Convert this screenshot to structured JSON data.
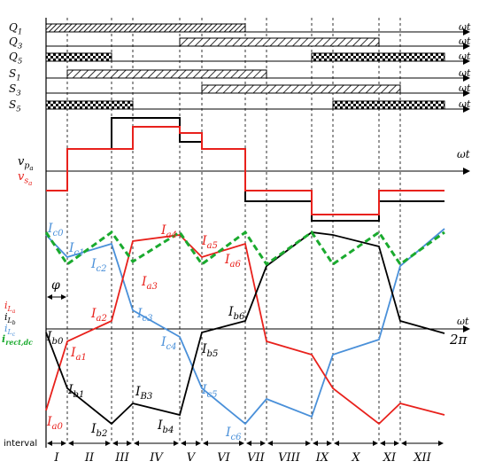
{
  "switches": [
    {
      "label_main": "Q",
      "label_sub": "1",
      "pattern": "hatch-dense"
    },
    {
      "label_main": "Q",
      "label_sub": "3",
      "pattern": "hatch"
    },
    {
      "label_main": "Q",
      "label_sub": "5",
      "pattern": "check"
    },
    {
      "label_main": "S",
      "label_sub": "1",
      "pattern": "hatch"
    },
    {
      "label_main": "S",
      "label_sub": "3",
      "pattern": "hatch"
    },
    {
      "label_main": "S",
      "label_sub": "5",
      "pattern": "check"
    }
  ],
  "axis_label": "ωt",
  "voltage": {
    "vp_label_main": "v",
    "vp_label_sub": "p",
    "vp_label_subsub": "a",
    "vs_label_main": "v",
    "vs_label_sub": "s",
    "vs_label_subsub": "a",
    "vp_color": "#000000",
    "vs_color": "#e8211c"
  },
  "currents": {
    "iLa_main": "i",
    "iLa_sub": "L",
    "iLa_subsub": "a",
    "iLb_main": "i",
    "iLb_sub": "L",
    "iLb_subsub": "b",
    "iLc_main": "i",
    "iLc_sub": "L",
    "iLc_subsub": "c",
    "irect_main": "i",
    "irect_sub": "rect,dc",
    "phi": "φ",
    "two_pi": "2π",
    "colors": {
      "a": "#e8211c",
      "b": "#000000",
      "c": "#4a90d9",
      "rect": "#1aaa2e"
    }
  },
  "point_labels": [
    {
      "main": "I",
      "sub": "c0",
      "color": "#4a90d9"
    },
    {
      "main": "I",
      "sub": "c1",
      "color": "#4a90d9"
    },
    {
      "main": "I",
      "sub": "c2",
      "color": "#4a90d9"
    },
    {
      "main": "I",
      "sub": "c3",
      "color": "#4a90d9"
    },
    {
      "main": "I",
      "sub": "c4",
      "color": "#4a90d9"
    },
    {
      "main": "I",
      "sub": "c5",
      "color": "#4a90d9"
    },
    {
      "main": "I",
      "sub": "c6",
      "color": "#4a90d9"
    },
    {
      "main": "I",
      "sub": "a0",
      "color": "#e8211c"
    },
    {
      "main": "I",
      "sub": "a1",
      "color": "#e8211c"
    },
    {
      "main": "I",
      "sub": "a2",
      "color": "#e8211c"
    },
    {
      "main": "I",
      "sub": "a3",
      "color": "#e8211c"
    },
    {
      "main": "I",
      "sub": "a4",
      "color": "#e8211c"
    },
    {
      "main": "I",
      "sub": "a5",
      "color": "#e8211c"
    },
    {
      "main": "I",
      "sub": "a6",
      "color": "#e8211c"
    },
    {
      "main": "I",
      "sub": "b0",
      "color": "#000000"
    },
    {
      "main": "I",
      "sub": "b1",
      "color": "#000000"
    },
    {
      "main": "I",
      "sub": "b2",
      "color": "#000000"
    },
    {
      "main": "I",
      "sub": "B3",
      "color": "#000000"
    },
    {
      "main": "I",
      "sub": "b4",
      "color": "#000000"
    },
    {
      "main": "I",
      "sub": "b5",
      "color": "#000000"
    },
    {
      "main": "I",
      "sub": "b6",
      "color": "#000000"
    }
  ],
  "interval_label": "interval",
  "intervals": [
    "I",
    "II",
    "III",
    "IV",
    "V",
    "VI",
    "VII",
    "VIII",
    "IX",
    "X",
    "XI",
    "XII"
  ]
}
